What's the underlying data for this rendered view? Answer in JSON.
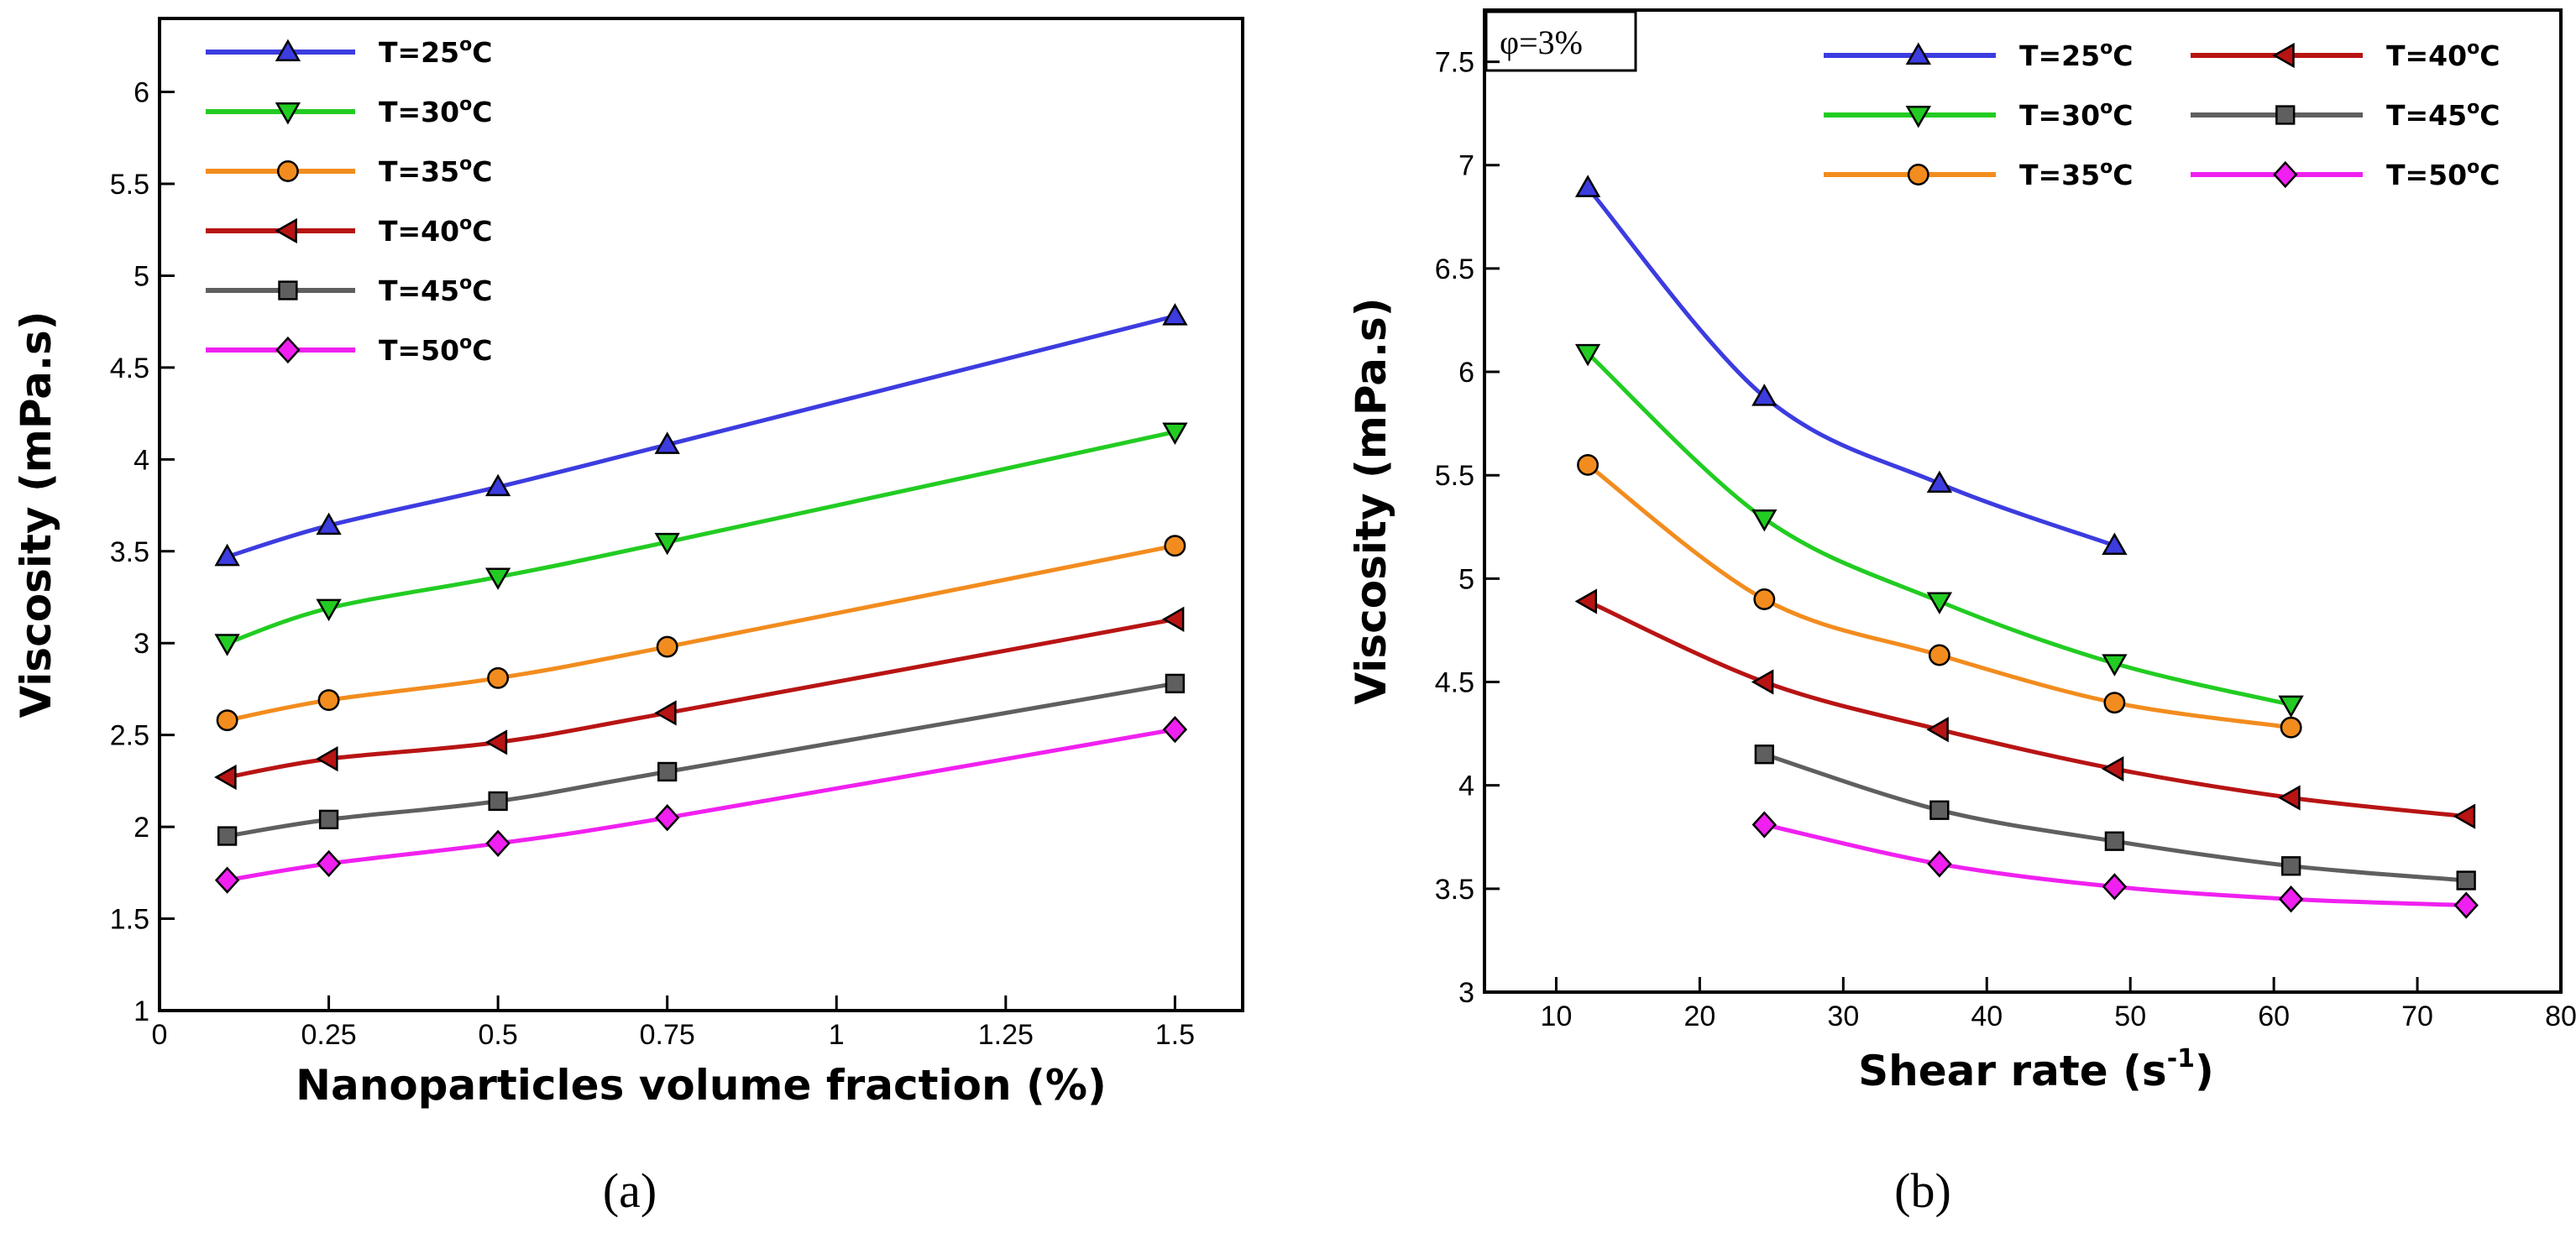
{
  "colors": {
    "T25": "#3c3ce0",
    "T30": "#22cc22",
    "T35": "#f28c1e",
    "T40": "#b81414",
    "T45": "#5f5f5f",
    "T50": "#f020f0"
  },
  "chart_data": [
    {
      "type": "line",
      "caption": "(a)",
      "xlabel": "Nanoparticles volume fraction (%)",
      "ylabel": "Viscosity (mPa.s)",
      "xlim": [
        0,
        1.6
      ],
      "ylim": [
        1,
        6.4
      ],
      "xticks": [
        0,
        0.25,
        0.5,
        0.75,
        1,
        1.25,
        1.5
      ],
      "xtick_labels": [
        "0",
        "0.25",
        "0.5",
        "0.75",
        "1",
        "1.25",
        "1.5"
      ],
      "yticks": [
        1,
        1.5,
        2,
        2.5,
        3,
        3.5,
        4,
        4.5,
        5,
        5.5,
        6
      ],
      "ytick_labels": [
        "1",
        "1.5",
        "2",
        "2.5",
        "3",
        "3.5",
        "4",
        "4.5",
        "5",
        "5.5",
        "6"
      ],
      "legend_position": "top-left",
      "legend_columns": 1,
      "series": [
        {
          "name": "T=25°C",
          "label_main": "T=25",
          "label_sup": "o",
          "label_end": "C",
          "color_key": "T25",
          "marker": "triangle-up",
          "x": [
            0.1,
            0.25,
            0.5,
            0.75,
            1.5
          ],
          "y": [
            3.47,
            3.64,
            3.85,
            4.08,
            4.78
          ]
        },
        {
          "name": "T=30°C",
          "label_main": "T=30",
          "label_sup": "o",
          "label_end": "C",
          "color_key": "T30",
          "marker": "triangle-down",
          "x": [
            0.1,
            0.25,
            0.5,
            0.75,
            1.5
          ],
          "y": [
            3.0,
            3.19,
            3.36,
            3.55,
            4.15
          ]
        },
        {
          "name": "T=35°C",
          "label_main": "T=35",
          "label_sup": "o",
          "label_end": "C",
          "color_key": "T35",
          "marker": "circle",
          "x": [
            0.1,
            0.25,
            0.5,
            0.75,
            1.5
          ],
          "y": [
            2.58,
            2.69,
            2.81,
            2.98,
            3.53
          ]
        },
        {
          "name": "T=40°C",
          "label_main": "T=40",
          "label_sup": "o",
          "label_end": "C",
          "color_key": "T40",
          "marker": "triangle-left",
          "x": [
            0.1,
            0.25,
            0.5,
            0.75,
            1.5
          ],
          "y": [
            2.27,
            2.37,
            2.46,
            2.62,
            3.13
          ]
        },
        {
          "name": "T=45°C",
          "label_main": "T=45",
          "label_sup": "o",
          "label_end": "C",
          "color_key": "T45",
          "marker": "square",
          "x": [
            0.1,
            0.25,
            0.5,
            0.75,
            1.5
          ],
          "y": [
            1.95,
            2.04,
            2.14,
            2.3,
            2.78
          ]
        },
        {
          "name": "T=50°C",
          "label_main": "T=50",
          "label_sup": "o",
          "label_end": "C",
          "color_key": "T50",
          "marker": "diamond",
          "x": [
            0.1,
            0.25,
            0.5,
            0.75,
            1.5
          ],
          "y": [
            1.71,
            1.8,
            1.91,
            2.05,
            2.53
          ]
        }
      ]
    },
    {
      "type": "line",
      "caption": "(b)",
      "annotation": "φ=3%",
      "xlabel_main": "Shear rate (s",
      "xlabel_sup": "-1",
      "xlabel_end": ")",
      "ylabel": "Viscosity (mPa.s)",
      "xlim": [
        5,
        80
      ],
      "ylim": [
        3,
        7.75
      ],
      "xticks": [
        10,
        20,
        30,
        40,
        50,
        60,
        70,
        80
      ],
      "xtick_labels": [
        "10",
        "20",
        "30",
        "40",
        "50",
        "60",
        "70",
        "80"
      ],
      "yticks": [
        3,
        3.5,
        4,
        4.5,
        5,
        5.5,
        6,
        6.5,
        7,
        7.5
      ],
      "ytick_labels": [
        "3",
        "3.5",
        "4",
        "4.5",
        "5",
        "5.5",
        "6",
        "6.5",
        "7",
        "7.5"
      ],
      "legend_position": "top-right",
      "legend_columns": 2,
      "series": [
        {
          "name": "T=25°C",
          "label_main": "T=25",
          "label_sup": "o",
          "label_end": "C",
          "color_key": "T25",
          "marker": "triangle-up",
          "x": [
            12.2,
            24.5,
            36.7,
            48.9
          ],
          "y": [
            6.89,
            5.88,
            5.46,
            5.16
          ]
        },
        {
          "name": "T=30°C",
          "label_main": "T=30",
          "label_sup": "o",
          "label_end": "C",
          "color_key": "T30",
          "marker": "triangle-down",
          "x": [
            12.2,
            24.5,
            36.7,
            48.9,
            61.2
          ],
          "y": [
            6.09,
            5.29,
            4.89,
            4.59,
            4.39
          ]
        },
        {
          "name": "T=35°C",
          "label_main": "T=35",
          "label_sup": "o",
          "label_end": "C",
          "color_key": "T35",
          "marker": "circle",
          "x": [
            12.2,
            24.5,
            36.7,
            48.9,
            61.2
          ],
          "y": [
            5.55,
            4.9,
            4.63,
            4.4,
            4.28
          ]
        },
        {
          "name": "T=40°C",
          "label_main": "T=40",
          "label_sup": "o",
          "label_end": "C",
          "color_key": "T40",
          "marker": "triangle-left",
          "x": [
            12.2,
            24.5,
            36.7,
            48.9,
            61.2,
            73.4
          ],
          "y": [
            4.89,
            4.5,
            4.27,
            4.08,
            3.94,
            3.85
          ]
        },
        {
          "name": "T=45°C",
          "label_main": "T=45",
          "label_sup": "o",
          "label_end": "C",
          "color_key": "T45",
          "marker": "square",
          "x": [
            24.5,
            36.7,
            48.9,
            61.2,
            73.4
          ],
          "y": [
            4.15,
            3.88,
            3.73,
            3.61,
            3.54
          ]
        },
        {
          "name": "T=50°C",
          "label_main": "T=50",
          "label_sup": "o",
          "label_end": "C",
          "color_key": "T50",
          "marker": "diamond",
          "x": [
            24.5,
            36.7,
            48.9,
            61.2,
            73.4
          ],
          "y": [
            3.81,
            3.62,
            3.51,
            3.45,
            3.42
          ]
        }
      ]
    }
  ]
}
